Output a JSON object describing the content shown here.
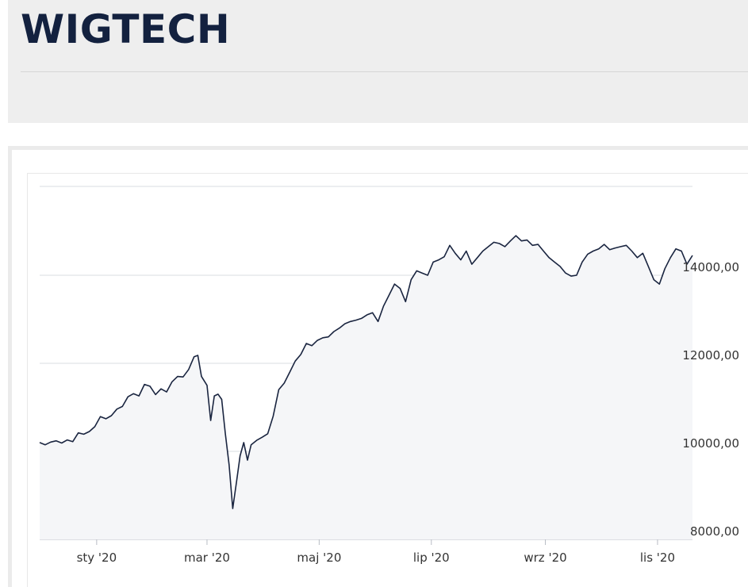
{
  "header": {
    "title": "WIGTECH"
  },
  "colors": {
    "title": "#13213f",
    "line": "#1a2540",
    "area_fill": "#f5f6f8",
    "grid": "#d9dce1",
    "panel_bg": "#eeeeee"
  },
  "chart_data": {
    "type": "area",
    "title": "",
    "xlabel": "",
    "ylabel": "",
    "ylim": [
      8000,
      15500
    ],
    "grid": "horizontal",
    "x_ticks": [
      "sty '20",
      "mar '20",
      "maj '20",
      "lip '20",
      "wrz '20",
      "lis '20"
    ],
    "y_ticks": [
      "8000,00",
      "10000,00",
      "12000,00",
      "14000,00"
    ],
    "y_tick_values": [
      8000,
      10000,
      12000,
      14000
    ],
    "x_range": [
      "2019-12-01",
      "2020-11-20"
    ],
    "series": [
      {
        "points": [
          [
            "2019-12-01",
            10200
          ],
          [
            "2019-12-04",
            10150
          ],
          [
            "2019-12-07",
            10210
          ],
          [
            "2019-12-10",
            10240
          ],
          [
            "2019-12-13",
            10190
          ],
          [
            "2019-12-16",
            10260
          ],
          [
            "2019-12-19",
            10220
          ],
          [
            "2019-12-22",
            10420
          ],
          [
            "2019-12-25",
            10390
          ],
          [
            "2019-12-28",
            10450
          ],
          [
            "2019-12-31",
            10560
          ],
          [
            "2020-01-03",
            10790
          ],
          [
            "2020-01-06",
            10740
          ],
          [
            "2020-01-09",
            10810
          ],
          [
            "2020-01-12",
            10960
          ],
          [
            "2020-01-15",
            11020
          ],
          [
            "2020-01-18",
            11240
          ],
          [
            "2020-01-21",
            11310
          ],
          [
            "2020-01-24",
            11260
          ],
          [
            "2020-01-27",
            11520
          ],
          [
            "2020-01-30",
            11480
          ],
          [
            "2020-02-02",
            11290
          ],
          [
            "2020-02-05",
            11420
          ],
          [
            "2020-02-08",
            11350
          ],
          [
            "2020-02-11",
            11580
          ],
          [
            "2020-02-14",
            11700
          ],
          [
            "2020-02-17",
            11690
          ],
          [
            "2020-02-20",
            11860
          ],
          [
            "2020-02-23",
            12150
          ],
          [
            "2020-02-25",
            12180
          ],
          [
            "2020-02-27",
            11700
          ],
          [
            "2020-03-01",
            11500
          ],
          [
            "2020-03-03",
            10700
          ],
          [
            "2020-03-05",
            11260
          ],
          [
            "2020-03-07",
            11300
          ],
          [
            "2020-03-09",
            11180
          ],
          [
            "2020-03-11",
            10400
          ],
          [
            "2020-03-13",
            9700
          ],
          [
            "2020-03-15",
            8700
          ],
          [
            "2020-03-17",
            9300
          ],
          [
            "2020-03-19",
            9900
          ],
          [
            "2020-03-21",
            10200
          ],
          [
            "2020-03-23",
            9800
          ],
          [
            "2020-03-25",
            10150
          ],
          [
            "2020-03-28",
            10250
          ],
          [
            "2020-03-31",
            10320
          ],
          [
            "2020-04-03",
            10400
          ],
          [
            "2020-04-06",
            10800
          ],
          [
            "2020-04-09",
            11400
          ],
          [
            "2020-04-12",
            11550
          ],
          [
            "2020-04-15",
            11800
          ],
          [
            "2020-04-18",
            12050
          ],
          [
            "2020-04-21",
            12200
          ],
          [
            "2020-04-24",
            12450
          ],
          [
            "2020-04-27",
            12400
          ],
          [
            "2020-04-30",
            12520
          ],
          [
            "2020-05-03",
            12580
          ],
          [
            "2020-05-06",
            12600
          ],
          [
            "2020-05-09",
            12720
          ],
          [
            "2020-05-12",
            12800
          ],
          [
            "2020-05-15",
            12900
          ],
          [
            "2020-05-18",
            12950
          ],
          [
            "2020-05-21",
            12980
          ],
          [
            "2020-05-24",
            13020
          ],
          [
            "2020-05-27",
            13100
          ],
          [
            "2020-05-30",
            13150
          ],
          [
            "2020-06-02",
            12950
          ],
          [
            "2020-06-05",
            13300
          ],
          [
            "2020-06-08",
            13550
          ],
          [
            "2020-06-11",
            13800
          ],
          [
            "2020-06-14",
            13700
          ],
          [
            "2020-06-17",
            13400
          ],
          [
            "2020-06-20",
            13900
          ],
          [
            "2020-06-23",
            14100
          ],
          [
            "2020-06-26",
            14050
          ],
          [
            "2020-06-29",
            14000
          ],
          [
            "2020-07-02",
            14300
          ],
          [
            "2020-07-05",
            14350
          ],
          [
            "2020-07-08",
            14420
          ],
          [
            "2020-07-11",
            14680
          ],
          [
            "2020-07-14",
            14500
          ],
          [
            "2020-07-17",
            14350
          ],
          [
            "2020-07-20",
            14550
          ],
          [
            "2020-07-23",
            14250
          ],
          [
            "2020-07-26",
            14400
          ],
          [
            "2020-07-29",
            14550
          ],
          [
            "2020-08-01",
            14650
          ],
          [
            "2020-08-04",
            14750
          ],
          [
            "2020-08-07",
            14720
          ],
          [
            "2020-08-10",
            14650
          ],
          [
            "2020-08-13",
            14780
          ],
          [
            "2020-08-16",
            14900
          ],
          [
            "2020-08-19",
            14780
          ],
          [
            "2020-08-22",
            14800
          ],
          [
            "2020-08-25",
            14680
          ],
          [
            "2020-08-28",
            14700
          ],
          [
            "2020-08-31",
            14550
          ],
          [
            "2020-09-03",
            14400
          ],
          [
            "2020-09-06",
            14300
          ],
          [
            "2020-09-09",
            14200
          ],
          [
            "2020-09-12",
            14050
          ],
          [
            "2020-09-15",
            13980
          ],
          [
            "2020-09-18",
            14000
          ],
          [
            "2020-09-21",
            14300
          ],
          [
            "2020-09-24",
            14480
          ],
          [
            "2020-09-27",
            14550
          ],
          [
            "2020-09-30",
            14600
          ],
          [
            "2020-10-03",
            14700
          ],
          [
            "2020-10-06",
            14580
          ],
          [
            "2020-10-09",
            14620
          ],
          [
            "2020-10-12",
            14650
          ],
          [
            "2020-10-15",
            14680
          ],
          [
            "2020-10-18",
            14550
          ],
          [
            "2020-10-21",
            14400
          ],
          [
            "2020-10-24",
            14500
          ],
          [
            "2020-10-27",
            14200
          ],
          [
            "2020-10-30",
            13900
          ],
          [
            "2020-11-02",
            13800
          ],
          [
            "2020-11-05",
            14150
          ],
          [
            "2020-11-08",
            14400
          ],
          [
            "2020-11-11",
            14600
          ],
          [
            "2020-11-14",
            14550
          ],
          [
            "2020-11-17",
            14250
          ],
          [
            "2020-11-20",
            14450
          ]
        ]
      }
    ]
  }
}
